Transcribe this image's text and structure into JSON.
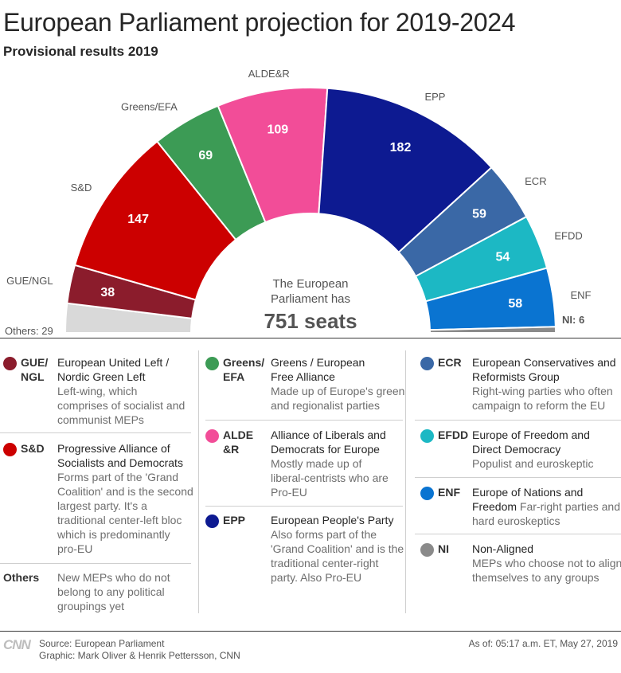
{
  "header": {
    "title": "European Parliament projection for 2019-2024",
    "subtitle": "Provisional results 2019"
  },
  "chart_data": {
    "type": "parliament-hemicycle",
    "total_seats": 751,
    "center_label_line1": "The European",
    "center_label_line2": "Parliament has",
    "center_label_big": "751 seats",
    "segments": [
      {
        "key": "others",
        "label": "Others",
        "short": "Others: 29",
        "seats": 29,
        "color": "#d9d9d9"
      },
      {
        "key": "gue",
        "label": "GUE/NGL",
        "seats": 38,
        "color": "#8b1c2c"
      },
      {
        "key": "sd",
        "label": "S&D",
        "seats": 147,
        "color": "#cc0000"
      },
      {
        "key": "greens",
        "label": "Greens/EFA",
        "seats": 69,
        "color": "#3c9b55"
      },
      {
        "key": "alde",
        "label": "ALDE&R",
        "seats": 109,
        "color": "#f24d98"
      },
      {
        "key": "epp",
        "label": "EPP",
        "seats": 182,
        "color": "#0d1a91"
      },
      {
        "key": "ecr",
        "label": "ECR",
        "seats": 59,
        "color": "#3a68a6"
      },
      {
        "key": "efdd",
        "label": "EFDD",
        "seats": 54,
        "color": "#1cb8c4"
      },
      {
        "key": "enf",
        "label": "ENF",
        "seats": 58,
        "color": "#0a74d1"
      },
      {
        "key": "ni",
        "label": "NI",
        "short": "NI: 6",
        "seats": 6,
        "color": "#8a8a8a"
      }
    ]
  },
  "legend": {
    "col1": [
      {
        "abbr": "GUE/\nNGL",
        "abbr1": "GUE/",
        "abbr2": "NGL",
        "color": "#8b1c2c",
        "name1": "European United Left /",
        "name2": "Nordic Green Left",
        "desc": [
          "Left-wing, which",
          "comprises of socialist and",
          "communist MEPs"
        ]
      },
      {
        "abbr1": "S&D",
        "color": "#cc0000",
        "name1": "Progressive Alliance of",
        "name2": "Socialists and Democrats",
        "desc": [
          "Forms part of the 'Grand",
          "Coalition' and is the second",
          "largest party. It's a",
          "traditional center-left bloc",
          "which is predominantly",
          "pro-EU"
        ]
      },
      {
        "abbr1": "Others",
        "name1": "",
        "name2": "",
        "desc": [
          "New MEPs who do not",
          "belong to any political",
          "groupings yet"
        ]
      }
    ],
    "col2": [
      {
        "abbr1": "Greens/",
        "abbr2": "EFA",
        "color": "#3c9b55",
        "name1": "Greens / European",
        "name2": "Free Alliance",
        "desc": [
          "Made up of Europe's green",
          "and regionalist parties"
        ]
      },
      {
        "abbr1": "ALDE",
        "abbr2": "&R",
        "color": "#f24d98",
        "name1": "Alliance of Liberals and",
        "name2": "Democrats for Europe",
        "desc": [
          "Mostly made up of",
          "liberal-centrists who are",
          "Pro-EU"
        ]
      },
      {
        "abbr1": "EPP",
        "color": "#0d1a91",
        "name1": "European People's Party",
        "name2": "",
        "desc": [
          "Also forms part of the",
          "'Grand Coalition' and is the",
          "traditional center-right",
          "party. Also Pro-EU"
        ]
      }
    ],
    "col3": [
      {
        "abbr1": "ECR",
        "color": "#3a68a6",
        "name1": "European Conservatives and",
        "name2": "Reformists Group",
        "desc": [
          "Right-wing parties who often",
          "campaign to reform the EU"
        ]
      },
      {
        "abbr1": "EFDD",
        "color": "#1cb8c4",
        "name1": "Europe of Freedom and",
        "name2": "Direct Democracy",
        "desc": [
          "Populist and euroskeptic"
        ]
      },
      {
        "abbr1": "ENF",
        "color": "#0a74d1",
        "name1": "Europe of Nations and",
        "name2": "Freedom",
        "name2_desc": "Far-right parties and",
        "desc": [
          "hard euroskeptics"
        ]
      },
      {
        "abbr1": "NI",
        "color": "#8a8a8a",
        "name1": "Non-Aligned",
        "name2": "",
        "desc": [
          "MEPs who choose not to align",
          "themselves to any groups"
        ]
      }
    ]
  },
  "footer": {
    "logo": "CNN",
    "source": "Source: European Parliament",
    "graphic": "Graphic: Mark Oliver & Henrik Pettersson, CNN",
    "as_of": "As of: 05:17 a.m. ET, May 27, 2019"
  }
}
